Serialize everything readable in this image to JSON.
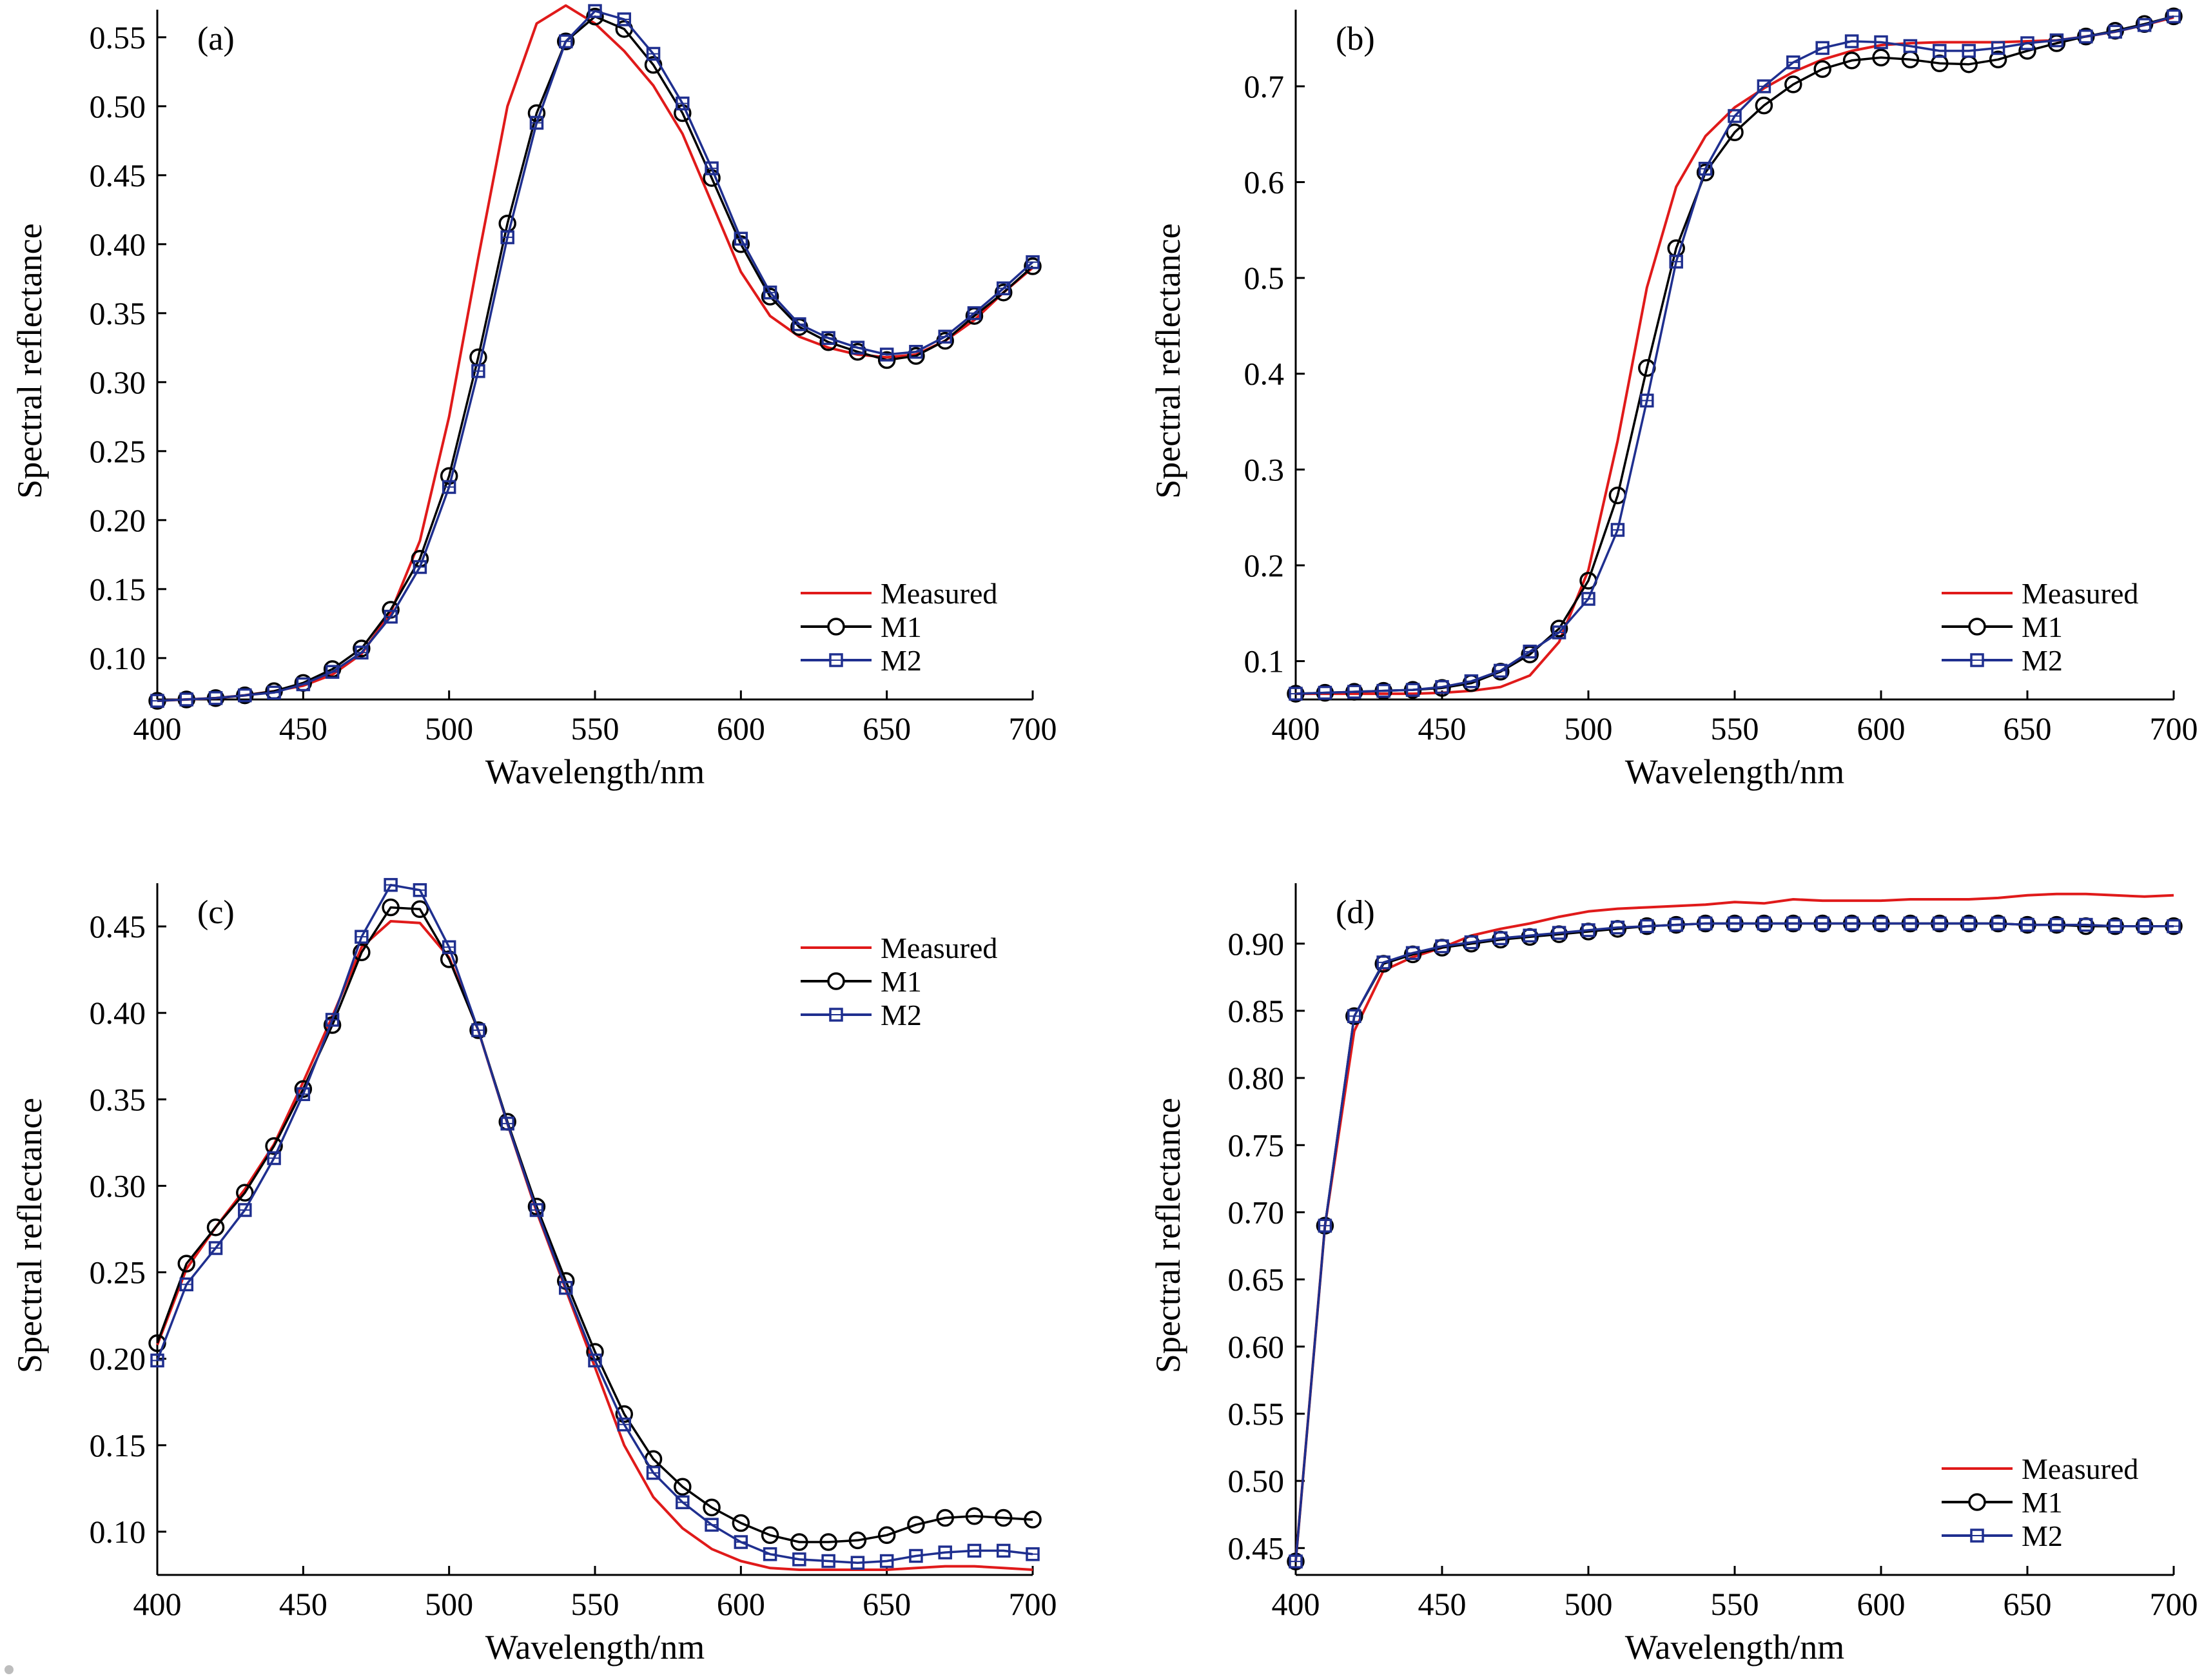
{
  "figure": {
    "xlabel": "Wavelength/nm",
    "ylabel": "Spectral reflectance",
    "legend": {
      "measured": "Measured",
      "m1": "M1",
      "m2": "M2"
    },
    "colors": {
      "measured": "#e01a1a",
      "m1": "#000000",
      "m2": "#1f2f8f",
      "axis": "#000000",
      "background": "#ffffff"
    },
    "markers": {
      "m1": "circle",
      "m2": "square"
    }
  },
  "chart_data": [
    {
      "type": "line",
      "panel_label": "(a)",
      "xlabel": "Wavelength/nm",
      "ylabel": "Spectral reflectance",
      "xlim": [
        400,
        700
      ],
      "ylim": [
        0.07,
        0.57
      ],
      "xticks": [
        400,
        450,
        500,
        550,
        600,
        650,
        700
      ],
      "yticks": [
        0.1,
        0.15,
        0.2,
        0.25,
        0.3,
        0.35,
        0.4,
        0.45,
        0.5,
        0.55
      ],
      "yticklabels": [
        "0.10",
        "0.15",
        "0.20",
        "0.25",
        "0.30",
        "0.35",
        "0.40",
        "0.45",
        "0.50",
        "0.55"
      ],
      "legend_position": "bottom-right",
      "x": [
        400,
        410,
        420,
        430,
        440,
        450,
        460,
        470,
        480,
        490,
        500,
        510,
        520,
        530,
        540,
        550,
        560,
        570,
        580,
        590,
        600,
        610,
        620,
        630,
        640,
        650,
        660,
        670,
        680,
        690,
        700
      ],
      "series": [
        {
          "name": "Measured",
          "values": [
            0.069,
            0.07,
            0.071,
            0.073,
            0.076,
            0.08,
            0.088,
            0.103,
            0.133,
            0.185,
            0.275,
            0.39,
            0.5,
            0.56,
            0.573,
            0.56,
            0.54,
            0.515,
            0.48,
            0.43,
            0.38,
            0.348,
            0.333,
            0.325,
            0.32,
            0.318,
            0.32,
            0.33,
            0.345,
            0.365,
            0.383
          ]
        },
        {
          "name": "M1",
          "values": [
            0.069,
            0.07,
            0.071,
            0.073,
            0.076,
            0.082,
            0.092,
            0.107,
            0.135,
            0.172,
            0.232,
            0.318,
            0.415,
            0.495,
            0.547,
            0.565,
            0.556,
            0.53,
            0.495,
            0.448,
            0.4,
            0.362,
            0.34,
            0.329,
            0.322,
            0.316,
            0.319,
            0.33,
            0.348,
            0.365,
            0.384
          ]
        },
        {
          "name": "M2",
          "values": [
            0.069,
            0.07,
            0.071,
            0.073,
            0.075,
            0.081,
            0.09,
            0.104,
            0.13,
            0.166,
            0.224,
            0.308,
            0.405,
            0.488,
            0.547,
            0.569,
            0.563,
            0.538,
            0.502,
            0.455,
            0.404,
            0.365,
            0.342,
            0.332,
            0.325,
            0.32,
            0.322,
            0.333,
            0.35,
            0.368,
            0.387
          ]
        }
      ]
    },
    {
      "type": "line",
      "panel_label": "(b)",
      "xlabel": "Wavelength/nm",
      "ylabel": "Spectral reflectance",
      "xlim": [
        400,
        700
      ],
      "ylim": [
        0.06,
        0.78
      ],
      "xticks": [
        400,
        450,
        500,
        550,
        600,
        650,
        700
      ],
      "yticks": [
        0.1,
        0.2,
        0.3,
        0.4,
        0.5,
        0.6,
        0.7
      ],
      "yticklabels": [
        "0.1",
        "0.2",
        "0.3",
        "0.4",
        "0.5",
        "0.6",
        "0.7"
      ],
      "legend_position": "bottom-right",
      "x": [
        400,
        410,
        420,
        430,
        440,
        450,
        460,
        470,
        480,
        490,
        500,
        510,
        520,
        530,
        540,
        550,
        560,
        570,
        580,
        590,
        600,
        610,
        620,
        630,
        640,
        650,
        660,
        670,
        680,
        690,
        700
      ],
      "series": [
        {
          "name": "Measured",
          "values": [
            0.066,
            0.066,
            0.066,
            0.066,
            0.066,
            0.067,
            0.069,
            0.073,
            0.085,
            0.12,
            0.195,
            0.33,
            0.49,
            0.595,
            0.648,
            0.678,
            0.698,
            0.715,
            0.728,
            0.737,
            0.743,
            0.745,
            0.746,
            0.746,
            0.746,
            0.747,
            0.748,
            0.752,
            0.757,
            0.764,
            0.772
          ]
        },
        {
          "name": "M1",
          "values": [
            0.066,
            0.067,
            0.068,
            0.069,
            0.07,
            0.072,
            0.077,
            0.089,
            0.107,
            0.134,
            0.184,
            0.273,
            0.406,
            0.531,
            0.61,
            0.652,
            0.68,
            0.702,
            0.718,
            0.727,
            0.73,
            0.728,
            0.724,
            0.723,
            0.728,
            0.737,
            0.745,
            0.752,
            0.758,
            0.765,
            0.773
          ]
        },
        {
          "name": "M2",
          "values": [
            0.066,
            0.067,
            0.068,
            0.069,
            0.07,
            0.073,
            0.079,
            0.09,
            0.11,
            0.13,
            0.165,
            0.237,
            0.372,
            0.517,
            0.614,
            0.669,
            0.7,
            0.725,
            0.74,
            0.747,
            0.746,
            0.742,
            0.737,
            0.737,
            0.74,
            0.745,
            0.748,
            0.752,
            0.757,
            0.764,
            0.773
          ]
        }
      ]
    },
    {
      "type": "line",
      "panel_label": "(c)",
      "xlabel": "Wavelength/nm",
      "ylabel": "Spectral reflectance",
      "xlim": [
        400,
        700
      ],
      "ylim": [
        0.075,
        0.475
      ],
      "xticks": [
        400,
        450,
        500,
        550,
        600,
        650,
        700
      ],
      "yticks": [
        0.1,
        0.15,
        0.2,
        0.25,
        0.3,
        0.35,
        0.4,
        0.45
      ],
      "yticklabels": [
        "0.10",
        "0.15",
        "0.20",
        "0.25",
        "0.30",
        "0.35",
        "0.40",
        "0.45"
      ],
      "legend_position": "top-right",
      "x": [
        400,
        410,
        420,
        430,
        440,
        450,
        460,
        470,
        480,
        490,
        500,
        510,
        520,
        530,
        540,
        550,
        560,
        570,
        580,
        590,
        600,
        610,
        620,
        630,
        640,
        650,
        660,
        670,
        680,
        690,
        700
      ],
      "series": [
        {
          "name": "Measured",
          "values": [
            0.208,
            0.252,
            0.276,
            0.298,
            0.324,
            0.36,
            0.398,
            0.438,
            0.453,
            0.452,
            0.432,
            0.39,
            0.336,
            0.285,
            0.24,
            0.195,
            0.15,
            0.12,
            0.102,
            0.09,
            0.083,
            0.079,
            0.078,
            0.078,
            0.078,
            0.078,
            0.079,
            0.08,
            0.08,
            0.079,
            0.078
          ]
        },
        {
          "name": "M1",
          "values": [
            0.209,
            0.255,
            0.276,
            0.296,
            0.323,
            0.356,
            0.393,
            0.435,
            0.461,
            0.46,
            0.431,
            0.39,
            0.337,
            0.288,
            0.245,
            0.204,
            0.168,
            0.142,
            0.126,
            0.114,
            0.105,
            0.098,
            0.094,
            0.094,
            0.095,
            0.098,
            0.104,
            0.108,
            0.109,
            0.108,
            0.107
          ]
        },
        {
          "name": "M2",
          "values": [
            0.199,
            0.243,
            0.264,
            0.286,
            0.316,
            0.353,
            0.396,
            0.444,
            0.474,
            0.471,
            0.438,
            0.39,
            0.336,
            0.286,
            0.241,
            0.199,
            0.162,
            0.134,
            0.117,
            0.104,
            0.094,
            0.087,
            0.084,
            0.083,
            0.082,
            0.083,
            0.086,
            0.088,
            0.089,
            0.089,
            0.087
          ]
        }
      ]
    },
    {
      "type": "line",
      "panel_label": "(d)",
      "xlabel": "Wavelength/nm",
      "ylabel": "Spectral reflectance",
      "xlim": [
        400,
        700
      ],
      "ylim": [
        0.43,
        0.945
      ],
      "xticks": [
        400,
        450,
        500,
        550,
        600,
        650,
        700
      ],
      "yticks": [
        0.45,
        0.5,
        0.55,
        0.6,
        0.65,
        0.7,
        0.75,
        0.8,
        0.85,
        0.9
      ],
      "yticklabels": [
        "0.45",
        "0.50",
        "0.55",
        "0.60",
        "0.65",
        "0.70",
        "0.75",
        "0.80",
        "0.85",
        "0.90"
      ],
      "legend_position": "bottom-right",
      "x": [
        400,
        410,
        420,
        430,
        440,
        450,
        460,
        470,
        480,
        490,
        500,
        510,
        520,
        530,
        540,
        550,
        560,
        570,
        580,
        590,
        600,
        610,
        620,
        630,
        640,
        650,
        660,
        670,
        680,
        690,
        700
      ],
      "series": [
        {
          "name": "Measured",
          "values": [
            0.44,
            0.69,
            0.835,
            0.88,
            0.89,
            0.897,
            0.906,
            0.911,
            0.915,
            0.92,
            0.924,
            0.926,
            0.927,
            0.928,
            0.929,
            0.931,
            0.93,
            0.933,
            0.932,
            0.932,
            0.932,
            0.933,
            0.933,
            0.933,
            0.934,
            0.936,
            0.937,
            0.937,
            0.936,
            0.935,
            0.936
          ]
        },
        {
          "name": "M1",
          "values": [
            0.44,
            0.69,
            0.846,
            0.885,
            0.892,
            0.897,
            0.9,
            0.903,
            0.905,
            0.907,
            0.909,
            0.911,
            0.913,
            0.914,
            0.915,
            0.915,
            0.915,
            0.915,
            0.915,
            0.915,
            0.915,
            0.915,
            0.915,
            0.915,
            0.915,
            0.914,
            0.914,
            0.913,
            0.913,
            0.913,
            0.913
          ]
        },
        {
          "name": "M2",
          "values": [
            0.44,
            0.69,
            0.846,
            0.886,
            0.893,
            0.898,
            0.901,
            0.904,
            0.906,
            0.908,
            0.91,
            0.912,
            0.913,
            0.914,
            0.915,
            0.915,
            0.915,
            0.915,
            0.915,
            0.915,
            0.915,
            0.915,
            0.915,
            0.915,
            0.915,
            0.914,
            0.914,
            0.914,
            0.913,
            0.913,
            0.913
          ]
        }
      ]
    }
  ]
}
